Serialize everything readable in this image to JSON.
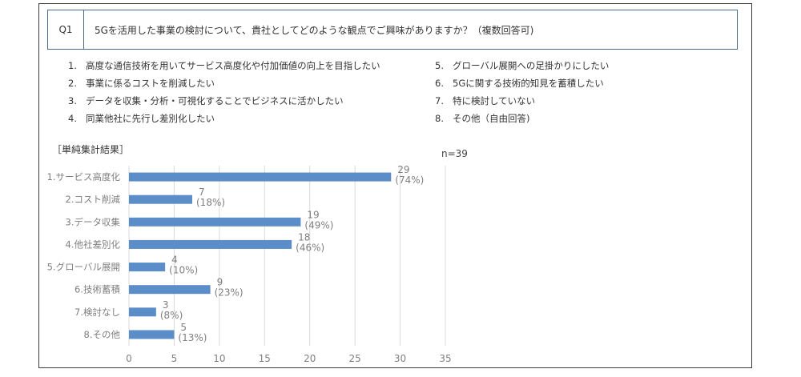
{
  "question": {
    "number": "Q1",
    "text": "5Gを活用した事業の検討について、貴社としてどのような観点でご興味がありますか？（複数回答可)"
  },
  "options": [
    {
      "num": "1.",
      "text": "高度な通信技術を用いてサービス高度化や付加価値の向上を目指したい"
    },
    {
      "num": "2.",
      "text": "事業に係るコストを削減したい"
    },
    {
      "num": "3.",
      "text": "データを収集・分析・可視化することでビジネスに活かしたい"
    },
    {
      "num": "4.",
      "text": "同業他社に先行し差別化したい"
    },
    {
      "num": "5.",
      "text": "グローバル展開への足掛かりにしたい"
    },
    {
      "num": "6.",
      "text": "5Gに関する技術的知見を蓄積したい"
    },
    {
      "num": "7.",
      "text": "特に検討していない"
    },
    {
      "num": "8.",
      "text": "その他（自由回答)"
    }
  ],
  "section_label": "［単純集計結果］",
  "n_label": "n=39",
  "chart_data": {
    "type": "bar",
    "orientation": "horizontal",
    "categories": [
      "1.サービス高度化",
      "2.コスト削減",
      "3.データ収集",
      "4.他社差別化",
      "5.グローバル展開",
      "6.技術蓄積",
      "7.検討なし",
      "8.その他"
    ],
    "values": [
      29,
      7,
      19,
      18,
      4,
      9,
      3,
      5
    ],
    "percent_labels": [
      "(74%)",
      "(18%)",
      "(49%)",
      "(46%)",
      "(10%)",
      "(23%)",
      "(8%)",
      "(13%)"
    ],
    "xlim": [
      0,
      35
    ],
    "xticks": [
      0,
      5,
      10,
      15,
      20,
      25,
      30,
      35
    ],
    "grid": "vertical",
    "bar_color": "#5b8ec9",
    "grid_color": "#d9d9d9",
    "title": "",
    "xlabel": "",
    "ylabel": ""
  }
}
